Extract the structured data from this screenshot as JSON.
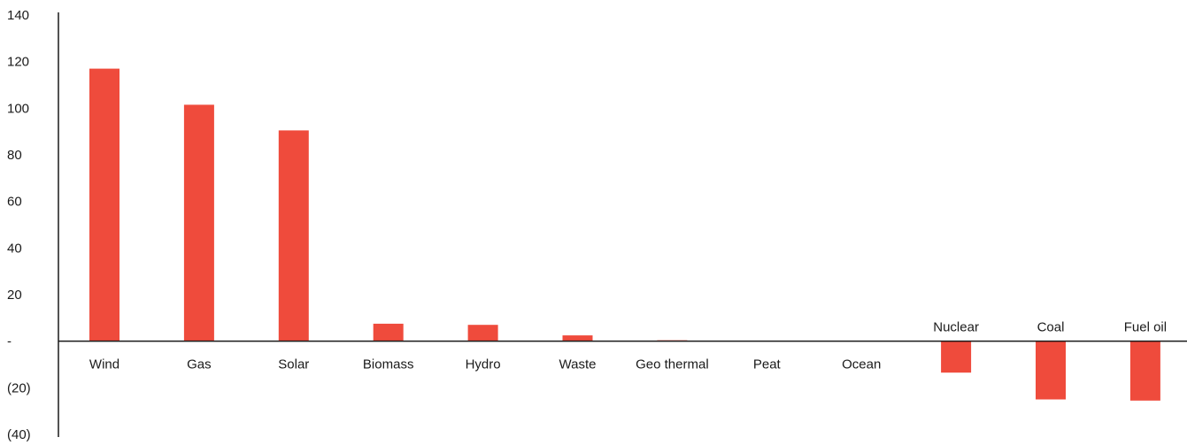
{
  "chart_data": {
    "type": "bar",
    "title": "",
    "xlabel": "",
    "ylabel": "",
    "categories": [
      "Wind",
      "Gas",
      "Solar",
      "Biomass",
      "Hydro",
      "Waste",
      "Geo thermal",
      "Peat",
      "Ocean",
      "Nuclear",
      "Coal",
      "Fuel oil"
    ],
    "values": [
      117,
      101.5,
      90.5,
      7.5,
      7,
      2.5,
      0.4,
      0,
      0,
      -13.5,
      -25,
      -25.5
    ],
    "ylim": [
      -40,
      140
    ],
    "yticks": [
      140,
      120,
      100,
      80,
      60,
      40,
      20,
      0,
      -20,
      -40
    ],
    "ytick_labels": [
      "140",
      "120",
      "100",
      "80",
      "60",
      "40",
      "20",
      "-",
      "(20)",
      "(40)"
    ],
    "grid": false,
    "legend": "none",
    "bar_color": "#ef4b3c",
    "axis_color": "#1a1a1a"
  }
}
